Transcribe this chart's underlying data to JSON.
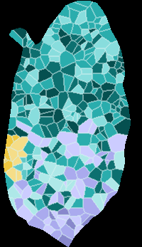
{
  "background_color": "#000000",
  "niinisto_light": "#aee8e8",
  "niinisto_mid": "#5ec8c8",
  "niinisto_dark": "#1a9090",
  "vayrynen_light": "#88dddd",
  "vayrynen_mid": "#2aadad",
  "vayrynen_dark": "#0d7070",
  "vayrynen_darkest": "#055050",
  "biaudet_light": "#ccccff",
  "biaudet_mid": "#aaaaee",
  "biaudet_dark": "#8888cc",
  "yellow1": "#f5dd88",
  "yellow2": "#f0c840",
  "white_border": "#c0e8e8",
  "fig_w": 2.0,
  "fig_h": 3.47,
  "dpi": 100
}
